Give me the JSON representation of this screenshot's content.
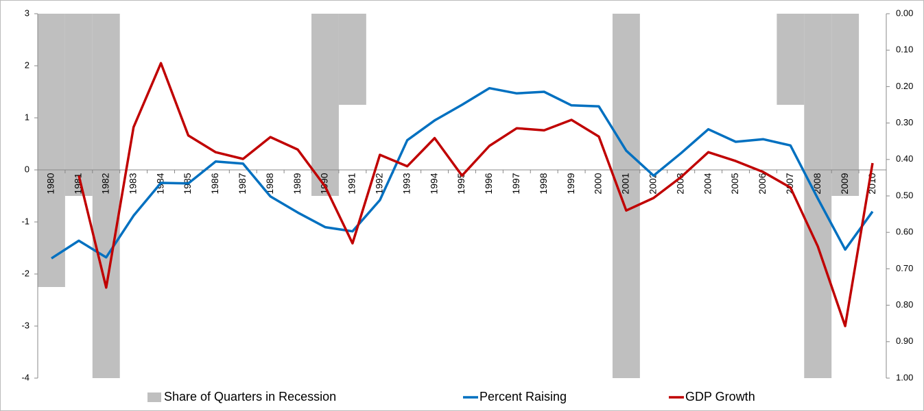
{
  "chart_data": {
    "type": "combo",
    "categories": [
      "1980",
      "1981",
      "1982",
      "1983",
      "1984",
      "1985",
      "1986",
      "1987",
      "1988",
      "1989",
      "1990",
      "1991",
      "1992",
      "1993",
      "1994",
      "1995",
      "1996",
      "1997",
      "1998",
      "1999",
      "2000",
      "2001",
      "2002",
      "2003",
      "2004",
      "2005",
      "2006",
      "2007",
      "2008",
      "2009",
      "2010"
    ],
    "series": [
      {
        "name": "Share of Quarters in Recession",
        "type": "bar",
        "axis": "y2",
        "color": "#bfbfbf",
        "values": [
          0.75,
          0.5,
          1.0,
          0,
          0,
          0,
          0,
          0,
          0,
          0,
          0.5,
          0.25,
          0,
          0,
          0,
          0,
          0,
          0,
          0,
          0,
          0,
          1.0,
          0,
          0,
          0,
          0,
          0,
          0.25,
          1.0,
          0.5,
          0
        ]
      },
      {
        "name": "Percent Raising",
        "type": "line",
        "color": "#0070c0",
        "values": [
          -1.7,
          -1.36,
          -1.68,
          -0.88,
          -0.25,
          -0.26,
          0.16,
          0.12,
          -0.51,
          -0.82,
          -1.1,
          -1.18,
          -0.58,
          0.57,
          0.95,
          1.25,
          1.57,
          1.47,
          1.5,
          1.24,
          1.22,
          0.37,
          -0.11,
          0.32,
          0.78,
          0.54,
          0.59,
          0.47,
          -0.55,
          -1.53,
          -0.8
        ]
      },
      {
        "name": "GDP Growth",
        "type": "line",
        "color": "#c00000",
        "values": [
          null,
          -0.11,
          -2.26,
          0.82,
          2.05,
          0.66,
          0.34,
          0.21,
          0.63,
          0.39,
          -0.32,
          -1.41,
          0.29,
          0.07,
          0.61,
          -0.11,
          0.46,
          0.8,
          0.76,
          0.96,
          0.64,
          -0.78,
          -0.54,
          -0.14,
          0.34,
          0.17,
          -0.04,
          -0.34,
          -1.47,
          -3.0,
          0.13
        ]
      }
    ],
    "ylim": [
      -4,
      3
    ],
    "yticks": [
      -4,
      -3,
      -2,
      -1,
      0,
      1,
      2,
      3
    ],
    "y2lim": [
      0,
      1
    ],
    "y2_inverted": true,
    "y2ticks": [
      {
        "value": 0,
        "label": "0.00"
      },
      {
        "value": 0.1,
        "label": "0.10"
      },
      {
        "value": 0.2,
        "label": "0.20"
      },
      {
        "value": 0.3,
        "label": "0.30"
      },
      {
        "value": 0.4,
        "label": "0.40"
      },
      {
        "value": 0.5,
        "label": "0.50"
      },
      {
        "value": 0.6,
        "label": "0.60"
      },
      {
        "value": 0.7,
        "label": "0.70"
      },
      {
        "value": 0.8,
        "label": "0.80"
      },
      {
        "value": 0.9,
        "label": "0.90"
      },
      {
        "value": 1,
        "label": "1.00"
      }
    ],
    "legend": "bottom",
    "grid": false
  }
}
